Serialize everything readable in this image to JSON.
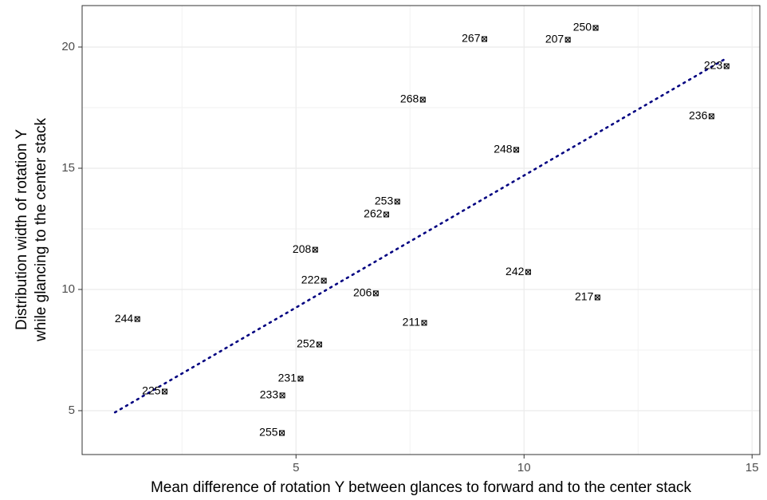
{
  "chart_data": {
    "type": "scatter",
    "x_label": "Mean difference of rotation Y between glances to forward and to the center stack",
    "y_label": [
      "Distribution width of rotation Y",
      "while glancing to the center stack"
    ],
    "labels": [
      "250",
      "267",
      "207",
      "223",
      "268",
      "236",
      "248",
      "253",
      "262",
      "208",
      "242",
      "222",
      "206",
      "217",
      "244",
      "211",
      "252",
      "231",
      "225",
      "233",
      "255"
    ],
    "x": [
      11.57,
      9.13,
      10.96,
      14.44,
      7.78,
      14.11,
      9.83,
      7.22,
      6.98,
      5.42,
      10.09,
      5.61,
      6.75,
      11.61,
      1.52,
      7.81,
      5.51,
      5.1,
      2.12,
      4.7,
      4.69
    ],
    "y": [
      20.79,
      20.33,
      20.3,
      19.21,
      17.83,
      17.14,
      15.76,
      13.62,
      13.09,
      11.64,
      10.72,
      10.36,
      9.84,
      9.67,
      8.78,
      8.62,
      7.73,
      6.32,
      5.79,
      5.63,
      4.08
    ],
    "color": "#000000",
    "trend": {
      "x": [
        1.03,
        14.44
      ],
      "y": [
        4.93,
        19.54
      ],
      "color": "#000080"
    },
    "xlim": [
      0.31,
      15.17
    ],
    "ylim": [
      3.19,
      21.71
    ],
    "xticks": [
      5,
      10,
      15
    ],
    "yticks": [
      5,
      10,
      15,
      20
    ],
    "minor_xticks": [
      2.5,
      7.5,
      12.5
    ],
    "minor_yticks": [
      7.5,
      12.5,
      17.5
    ],
    "grid": true
  }
}
